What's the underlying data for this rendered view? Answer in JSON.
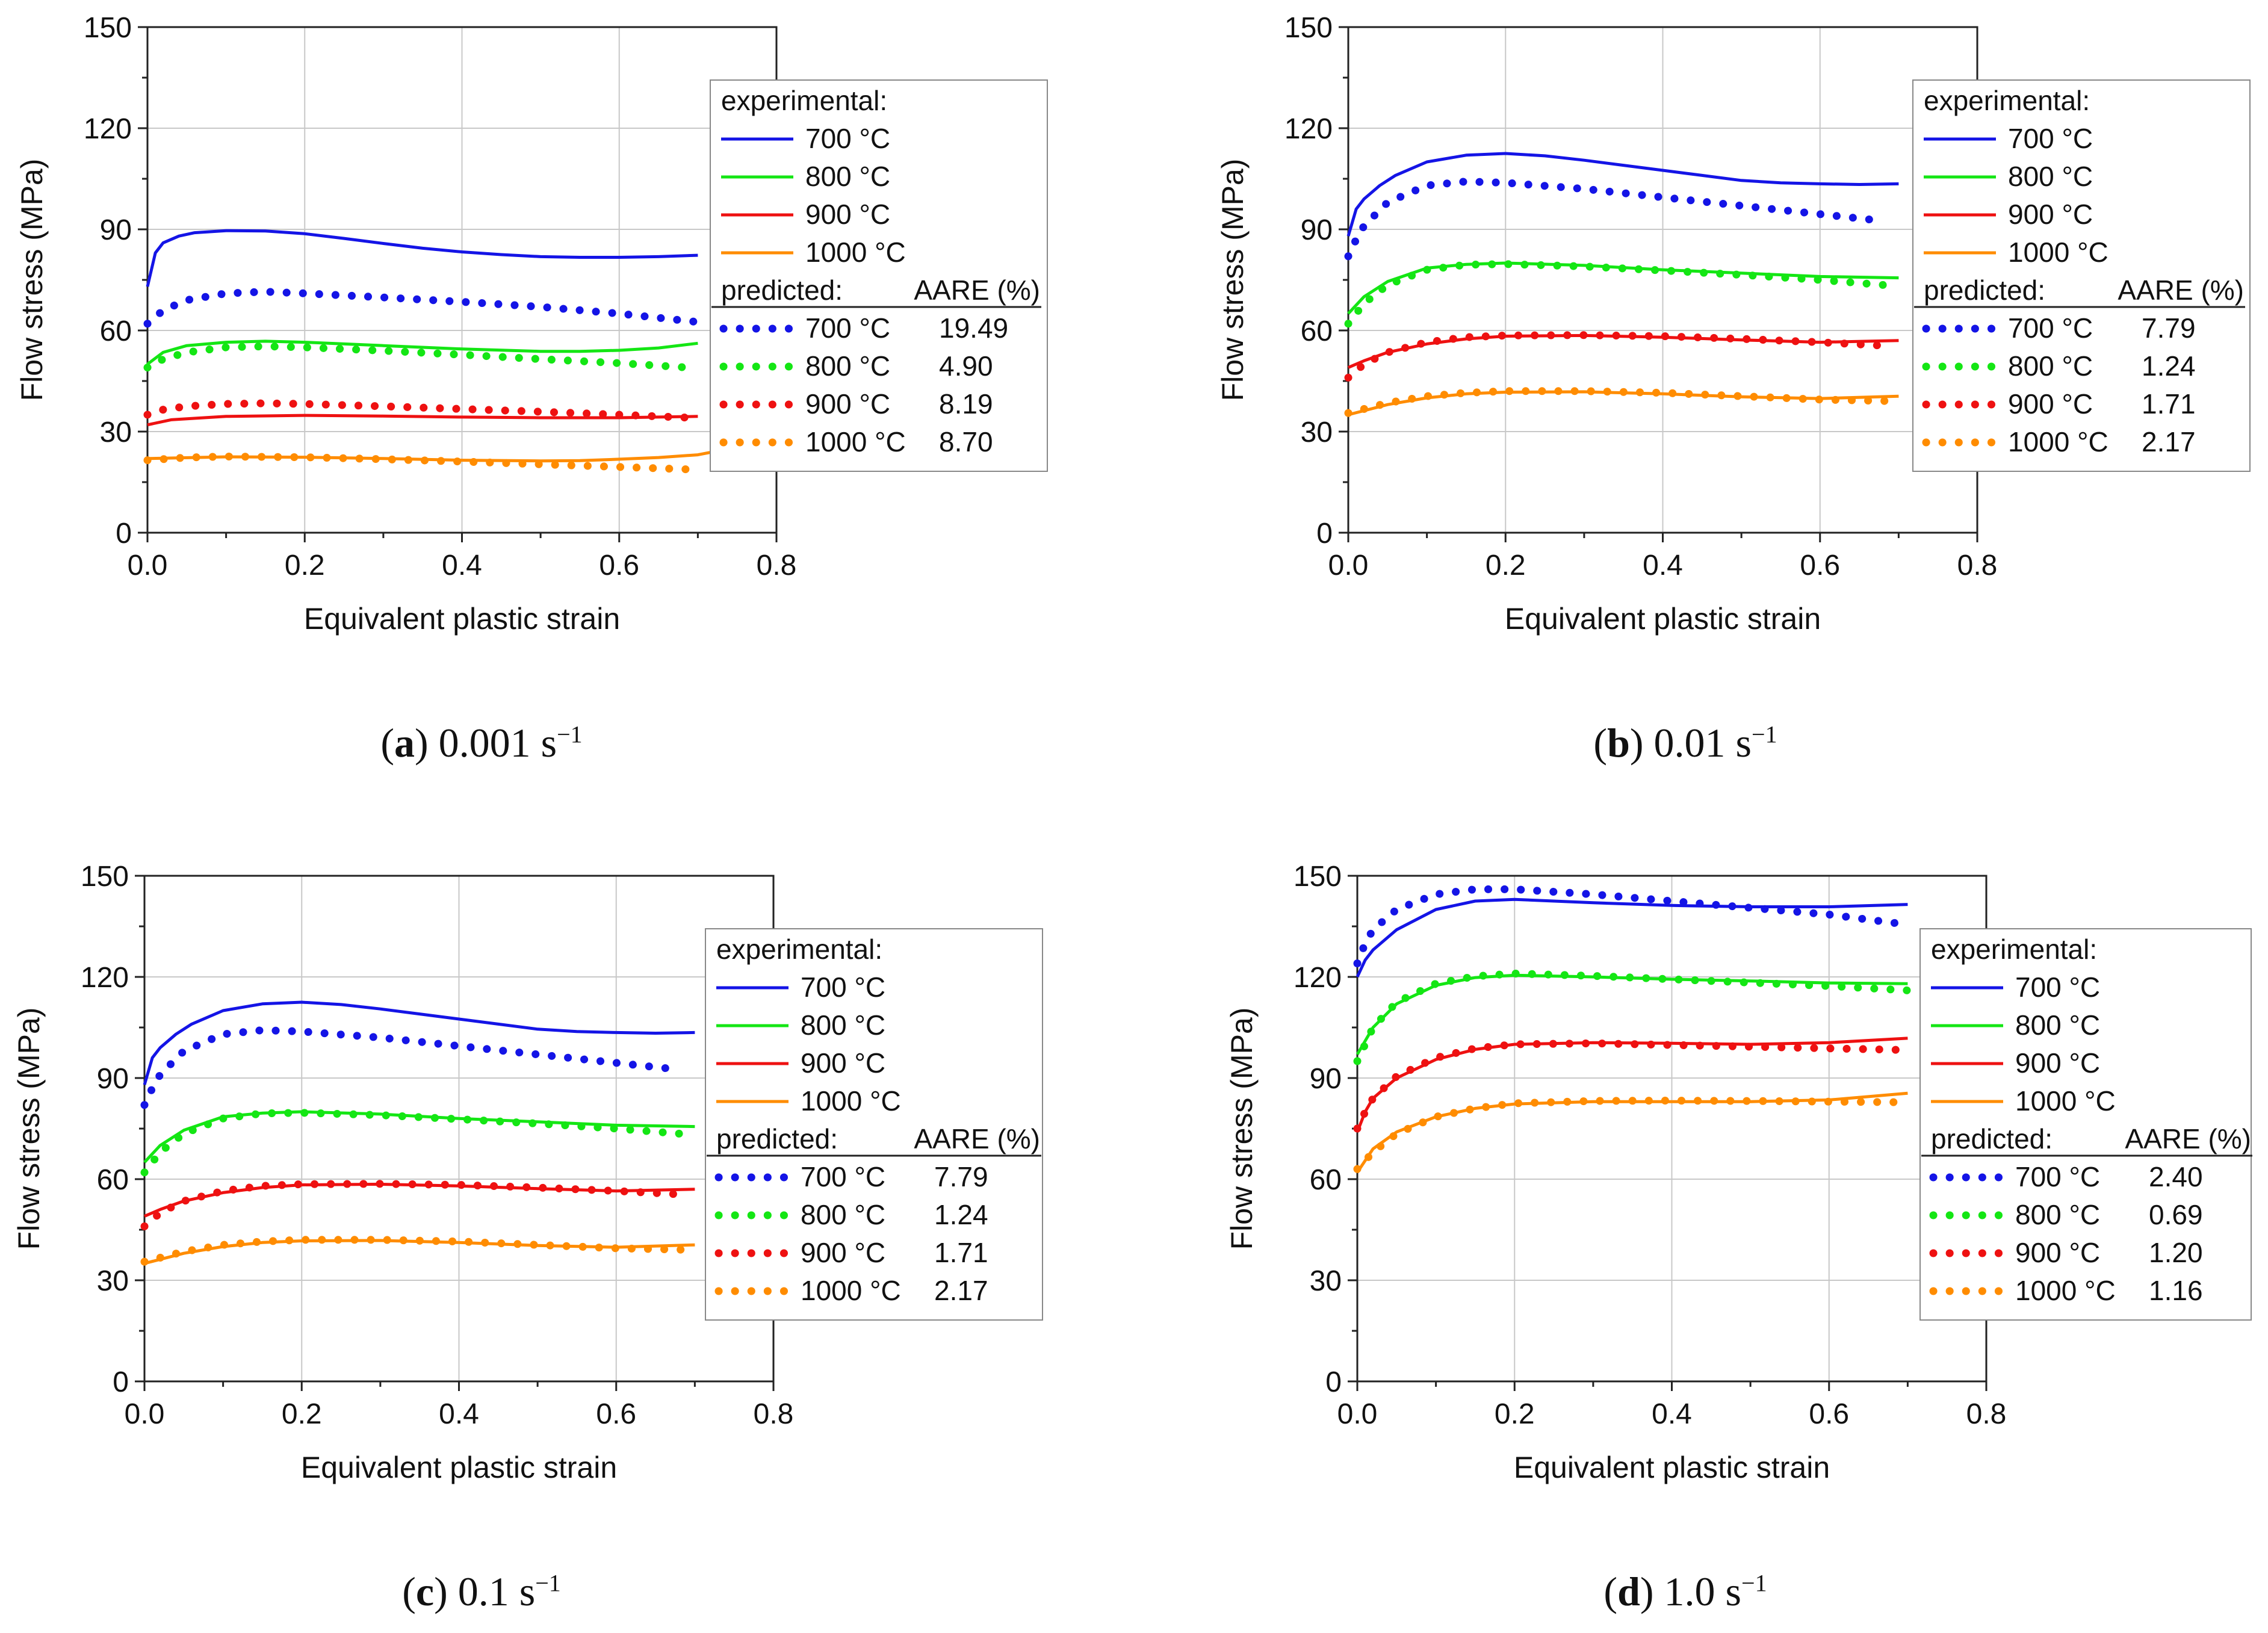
{
  "colors": {
    "700": "#1414e6",
    "800": "#14e614",
    "900": "#ee1111",
    "1000": "#ff8c00"
  },
  "shared": {
    "xlabel": "Equivalent plastic strain",
    "ylabel": "Flow stress (MPa)",
    "xticks": [
      "0.0",
      "0.2",
      "0.4",
      "0.6",
      "0.8"
    ],
    "yticks": [
      "0",
      "30",
      "60",
      "90",
      "120",
      "150"
    ],
    "legend_exp_header": "experimental:",
    "legend_pred_header": "predicted:",
    "legend_aare_header": "AARE (%)",
    "temps": [
      "700 °C",
      "800 °C",
      "900 °C",
      "1000 °C"
    ]
  },
  "chart_data": [
    {
      "type": "line",
      "caption_letter": "a",
      "caption_rate": "0.001 s",
      "caption_exp": "−1",
      "xlabel": "Equivalent plastic strain",
      "ylabel": "Flow stress (MPa)",
      "xlim": [
        0,
        0.8
      ],
      "ylim": [
        0,
        150
      ],
      "grid": true,
      "legend_position": "right",
      "aare": [
        "19.49",
        "4.90",
        "8.19",
        "8.70"
      ],
      "experimental": [
        {
          "name": "700 °C",
          "x": [
            0,
            0.01,
            0.02,
            0.04,
            0.06,
            0.1,
            0.15,
            0.2,
            0.25,
            0.3,
            0.35,
            0.4,
            0.45,
            0.5,
            0.55,
            0.6,
            0.65,
            0.7
          ],
          "y": [
            73,
            83,
            86,
            88,
            89,
            89.6,
            89.5,
            88.7,
            87.3,
            85.8,
            84.4,
            83.3,
            82.5,
            81.9,
            81.7,
            81.7,
            81.9,
            82.3
          ]
        },
        {
          "name": "800 °C",
          "x": [
            0,
            0.02,
            0.05,
            0.1,
            0.15,
            0.2,
            0.3,
            0.4,
            0.5,
            0.55,
            0.6,
            0.65,
            0.7
          ],
          "y": [
            50,
            53.5,
            55.5,
            56.5,
            56.8,
            56.5,
            55.5,
            54.5,
            53.8,
            53.8,
            54.1,
            54.8,
            56.2
          ]
        },
        {
          "name": "900 °C",
          "x": [
            0,
            0.03,
            0.1,
            0.2,
            0.3,
            0.4,
            0.5,
            0.6,
            0.7
          ],
          "y": [
            32,
            33.5,
            34.5,
            34.8,
            34.6,
            34.3,
            34.1,
            34.1,
            34.5
          ]
        },
        {
          "name": "1000 °C",
          "x": [
            0,
            0.1,
            0.2,
            0.3,
            0.4,
            0.5,
            0.55,
            0.6,
            0.65,
            0.7,
            0.72
          ],
          "y": [
            22,
            22.5,
            22.4,
            22,
            21.5,
            21.3,
            21.4,
            21.8,
            22.3,
            23.1,
            24
          ]
        }
      ],
      "predicted": [
        {
          "name": "700 °C",
          "x": [
            0,
            0.02,
            0.05,
            0.1,
            0.15,
            0.2,
            0.3,
            0.4,
            0.5,
            0.6,
            0.7
          ],
          "y": [
            62,
            66,
            69,
            71,
            71.5,
            71,
            69.8,
            68.5,
            67,
            65,
            62.5
          ]
        },
        {
          "name": "800 °C",
          "x": [
            0,
            0.02,
            0.05,
            0.1,
            0.15,
            0.2,
            0.3,
            0.4,
            0.5,
            0.6,
            0.7
          ],
          "y": [
            49,
            51.5,
            53.5,
            55,
            55.3,
            55,
            54,
            52.8,
            51.5,
            50.3,
            48.8
          ]
        },
        {
          "name": "900 °C",
          "x": [
            0,
            0.02,
            0.05,
            0.1,
            0.15,
            0.2,
            0.3,
            0.4,
            0.5,
            0.6,
            0.7
          ],
          "y": [
            35,
            36.5,
            37.5,
            38.2,
            38.4,
            38.2,
            37.5,
            36.7,
            35.9,
            35,
            34
          ]
        },
        {
          "name": "1000 °C",
          "x": [
            0,
            0.05,
            0.1,
            0.2,
            0.3,
            0.4,
            0.5,
            0.6,
            0.7
          ],
          "y": [
            21.5,
            22.3,
            22.6,
            22.4,
            21.8,
            21.1,
            20.3,
            19.5,
            18.7
          ]
        }
      ]
    },
    {
      "type": "line",
      "caption_letter": "b",
      "caption_rate": "0.01 s",
      "caption_exp": "−1",
      "xlabel": "Equivalent plastic strain",
      "ylabel": "Flow stress (MPa)",
      "xlim": [
        0,
        0.8
      ],
      "ylim": [
        0,
        150
      ],
      "grid": true,
      "legend_position": "right",
      "aare": [
        "7.79",
        "1.24",
        "1.71",
        "2.17"
      ],
      "experimental": [
        {
          "name": "700 °C",
          "x": [
            0,
            0.01,
            0.02,
            0.04,
            0.06,
            0.1,
            0.15,
            0.2,
            0.25,
            0.3,
            0.35,
            0.4,
            0.45,
            0.5,
            0.55,
            0.6,
            0.65,
            0.7
          ],
          "y": [
            88,
            96,
            99,
            103,
            106,
            110,
            112,
            112.5,
            111.8,
            110.5,
            109,
            107.5,
            106,
            104.5,
            103.8,
            103.5,
            103.3,
            103.5
          ]
        },
        {
          "name": "800 °C",
          "x": [
            0,
            0.02,
            0.05,
            0.1,
            0.15,
            0.2,
            0.3,
            0.4,
            0.5,
            0.6,
            0.7
          ],
          "y": [
            65,
            70,
            74.5,
            78.5,
            79.6,
            80,
            79.3,
            78,
            77,
            76,
            75.6
          ]
        },
        {
          "name": "900 °C",
          "x": [
            0,
            0.02,
            0.05,
            0.1,
            0.15,
            0.2,
            0.3,
            0.4,
            0.5,
            0.6,
            0.7
          ],
          "y": [
            49,
            51,
            53.5,
            56,
            57.5,
            58.3,
            58.5,
            58,
            57.2,
            56.5,
            57
          ]
        },
        {
          "name": "1000 °C",
          "x": [
            0,
            0.05,
            0.1,
            0.15,
            0.2,
            0.3,
            0.4,
            0.5,
            0.6,
            0.7
          ],
          "y": [
            35,
            38,
            40,
            41.2,
            41.7,
            41.8,
            41.2,
            40.3,
            39.8,
            40.5
          ]
        }
      ],
      "predicted": [
        {
          "name": "700 °C",
          "x": [
            0,
            0.01,
            0.02,
            0.05,
            0.1,
            0.15,
            0.2,
            0.3,
            0.4,
            0.5,
            0.6,
            0.68
          ],
          "y": [
            82,
            87,
            91,
            98,
            103,
            104.2,
            103.8,
            102,
            99.5,
            97,
            94.5,
            92.5
          ]
        },
        {
          "name": "800 °C",
          "x": [
            0,
            0.02,
            0.05,
            0.1,
            0.15,
            0.2,
            0.3,
            0.4,
            0.5,
            0.6,
            0.68
          ],
          "y": [
            62,
            68,
            73.5,
            78,
            79.5,
            79.7,
            79,
            77.8,
            76.5,
            75,
            73.5
          ]
        },
        {
          "name": "900 °C",
          "x": [
            0,
            0.02,
            0.05,
            0.1,
            0.15,
            0.2,
            0.3,
            0.4,
            0.5,
            0.6,
            0.68
          ],
          "y": [
            46,
            50,
            53.5,
            56.5,
            58,
            58.5,
            58.6,
            58.3,
            57.5,
            56.5,
            55.5
          ]
        },
        {
          "name": "1000 °C",
          "x": [
            0,
            0.05,
            0.1,
            0.15,
            0.2,
            0.3,
            0.4,
            0.5,
            0.6,
            0.7
          ],
          "y": [
            35.5,
            38.5,
            40.5,
            41.5,
            42,
            42,
            41.5,
            40.5,
            39.5,
            39
          ]
        }
      ]
    },
    {
      "type": "line",
      "caption_letter": "c",
      "caption_rate": "0.1 s",
      "caption_exp": "−1",
      "xlabel": "Equivalent plastic strain",
      "ylabel": "Flow stress (MPa)",
      "xlim": [
        0,
        0.8
      ],
      "ylim": [
        0,
        150
      ],
      "grid": true,
      "legend_position": "right",
      "aare": [
        "7.79",
        "1.24",
        "1.71",
        "2.17"
      ],
      "experimental": [
        {
          "name": "700 °C",
          "x": [
            0,
            0.01,
            0.02,
            0.04,
            0.06,
            0.1,
            0.15,
            0.2,
            0.25,
            0.3,
            0.35,
            0.4,
            0.45,
            0.5,
            0.55,
            0.6,
            0.65,
            0.7
          ],
          "y": [
            88,
            96,
            99,
            103,
            106,
            110,
            112,
            112.5,
            111.8,
            110.5,
            109,
            107.5,
            106,
            104.5,
            103.8,
            103.5,
            103.3,
            103.5
          ]
        },
        {
          "name": "800 °C",
          "x": [
            0,
            0.02,
            0.05,
            0.1,
            0.15,
            0.2,
            0.3,
            0.4,
            0.5,
            0.6,
            0.7
          ],
          "y": [
            65,
            70,
            74.5,
            78.5,
            79.6,
            80,
            79.3,
            78,
            77,
            76,
            75.6
          ]
        },
        {
          "name": "900 °C",
          "x": [
            0,
            0.02,
            0.05,
            0.1,
            0.15,
            0.2,
            0.3,
            0.4,
            0.5,
            0.6,
            0.7
          ],
          "y": [
            49,
            51,
            53.5,
            56,
            57.5,
            58.3,
            58.5,
            58,
            57.2,
            56.5,
            57
          ]
        },
        {
          "name": "1000 °C",
          "x": [
            0,
            0.05,
            0.1,
            0.15,
            0.2,
            0.3,
            0.4,
            0.5,
            0.6,
            0.7
          ],
          "y": [
            35,
            38,
            40,
            41.2,
            41.7,
            41.8,
            41.2,
            40.3,
            39.8,
            40.5
          ]
        }
      ],
      "predicted": [
        {
          "name": "700 °C",
          "x": [
            0,
            0.01,
            0.02,
            0.05,
            0.1,
            0.15,
            0.2,
            0.3,
            0.4,
            0.5,
            0.6,
            0.68
          ],
          "y": [
            82,
            87,
            91,
            98,
            103,
            104.2,
            103.8,
            102,
            99.5,
            97,
            94.5,
            92.5
          ]
        },
        {
          "name": "800 °C",
          "x": [
            0,
            0.02,
            0.05,
            0.1,
            0.15,
            0.2,
            0.3,
            0.4,
            0.5,
            0.6,
            0.68
          ],
          "y": [
            62,
            68,
            73.5,
            78,
            79.5,
            79.7,
            79,
            77.8,
            76.5,
            75,
            73.5
          ]
        },
        {
          "name": "900 °C",
          "x": [
            0,
            0.02,
            0.05,
            0.1,
            0.15,
            0.2,
            0.3,
            0.4,
            0.5,
            0.6,
            0.68
          ],
          "y": [
            46,
            50,
            53.5,
            56.5,
            58,
            58.5,
            58.6,
            58.3,
            57.5,
            56.5,
            55.5
          ]
        },
        {
          "name": "1000 °C",
          "x": [
            0,
            0.05,
            0.1,
            0.15,
            0.2,
            0.3,
            0.4,
            0.5,
            0.6,
            0.7
          ],
          "y": [
            35.5,
            38.5,
            40.5,
            41.5,
            42,
            42,
            41.5,
            40.5,
            39.5,
            39
          ]
        }
      ]
    },
    {
      "type": "line",
      "caption_letter": "d",
      "caption_rate": "1.0 s",
      "caption_exp": "−1",
      "xlabel": "Equivalent plastic strain",
      "ylabel": "Flow stress (MPa)",
      "xlim": [
        0,
        0.8
      ],
      "ylim": [
        0,
        150
      ],
      "grid": true,
      "legend_position": "right",
      "aare": [
        "2.40",
        "0.69",
        "1.20",
        "1.16"
      ],
      "experimental": [
        {
          "name": "700 °C",
          "x": [
            0,
            0.01,
            0.02,
            0.05,
            0.1,
            0.15,
            0.2,
            0.25,
            0.3,
            0.4,
            0.5,
            0.6,
            0.7
          ],
          "y": [
            120,
            125,
            128,
            134,
            140,
            142.5,
            143,
            142.5,
            142,
            141.2,
            140.8,
            140.8,
            141.5
          ]
        },
        {
          "name": "800 °C",
          "x": [
            0,
            0.02,
            0.05,
            0.1,
            0.15,
            0.2,
            0.3,
            0.4,
            0.5,
            0.6,
            0.7
          ],
          "y": [
            97,
            105,
            112,
            117.5,
            119.8,
            120.5,
            120,
            119.3,
            118.8,
            118.2,
            118
          ]
        },
        {
          "name": "900 °C",
          "x": [
            0,
            0.01,
            0.02,
            0.05,
            0.1,
            0.15,
            0.2,
            0.3,
            0.4,
            0.5,
            0.6,
            0.7
          ],
          "y": [
            74,
            80,
            84,
            90,
            95.5,
            98.5,
            100,
            100.5,
            100.3,
            100,
            100.5,
            101.8
          ]
        },
        {
          "name": "1000 °C",
          "x": [
            0,
            0.02,
            0.05,
            0.1,
            0.15,
            0.2,
            0.3,
            0.4,
            0.5,
            0.6,
            0.7
          ],
          "y": [
            62,
            69,
            74,
            78.5,
            81,
            82.3,
            83,
            83,
            83,
            83.5,
            85.5
          ]
        }
      ],
      "predicted": [
        {
          "name": "700 °C",
          "x": [
            0,
            0.01,
            0.02,
            0.05,
            0.1,
            0.15,
            0.2,
            0.3,
            0.4,
            0.5,
            0.6,
            0.7
          ],
          "y": [
            124,
            130,
            134,
            140,
            144.5,
            146,
            146,
            144.5,
            142.5,
            140.5,
            138.5,
            135.5
          ]
        },
        {
          "name": "800 °C",
          "x": [
            0,
            0.02,
            0.05,
            0.1,
            0.15,
            0.2,
            0.3,
            0.4,
            0.5,
            0.6,
            0.7
          ],
          "y": [
            95,
            105,
            112.5,
            118,
            120.2,
            121,
            120.3,
            119.3,
            118.3,
            117.3,
            116
          ]
        },
        {
          "name": "900 °C",
          "x": [
            0,
            0.01,
            0.02,
            0.05,
            0.1,
            0.15,
            0.2,
            0.3,
            0.4,
            0.5,
            0.6,
            0.7
          ],
          "y": [
            75,
            80,
            84,
            90.5,
            96,
            98.8,
            100,
            100.3,
            99.8,
            99.3,
            98.8,
            98.3
          ]
        },
        {
          "name": "1000 °C",
          "x": [
            0,
            0.02,
            0.05,
            0.1,
            0.15,
            0.2,
            0.3,
            0.4,
            0.5,
            0.6,
            0.7
          ],
          "y": [
            63,
            68,
            73.5,
            78.5,
            81,
            82.5,
            83.2,
            83.3,
            83.2,
            83,
            82.8
          ]
        }
      ]
    }
  ]
}
